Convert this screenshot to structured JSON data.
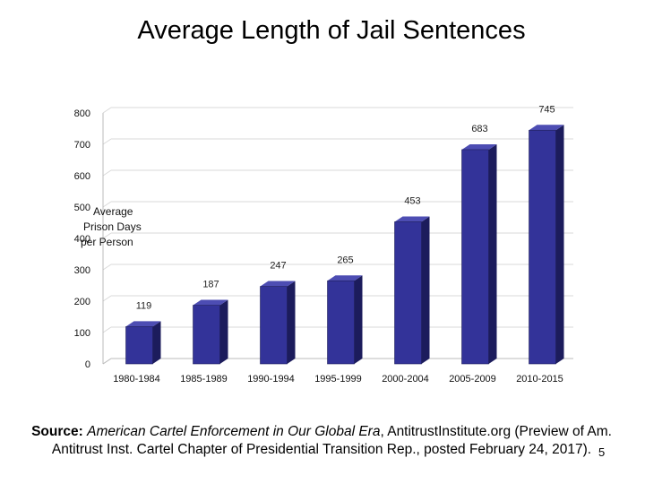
{
  "chart_data": {
    "type": "bar",
    "title": "Average Length of Jail Sentences",
    "ylabel": [
      "Average",
      "Prison Days",
      "per Person"
    ],
    "xlabel": "",
    "categories": [
      "1980-1984",
      "1985-1989",
      "1990-1994",
      "1995-1999",
      "2000-2004",
      "2005-2009",
      "2010-2015"
    ],
    "values": [
      119,
      187,
      247,
      265,
      453,
      683,
      745
    ],
    "ylim": [
      0,
      850
    ],
    "yticks": [
      0,
      100,
      200,
      300,
      400,
      500,
      600,
      700,
      800
    ],
    "grid": true,
    "legend": "none",
    "style": "3d-bar",
    "colors": {
      "bar_front": "#333399",
      "bar_side": "#1c1c5c",
      "bar_top": "#4d4db3",
      "grid": "#d8d8d8"
    }
  },
  "source": {
    "lead": "Source:",
    "italic": "American Cartel Enforcement in Our Global Era",
    "rest": ", AntitrustInstitute.org (Preview of Am. Antitrust Inst. Cartel Chapter of Presidential Transition Rep., posted February 24, 2017)."
  },
  "slide_number": "5"
}
